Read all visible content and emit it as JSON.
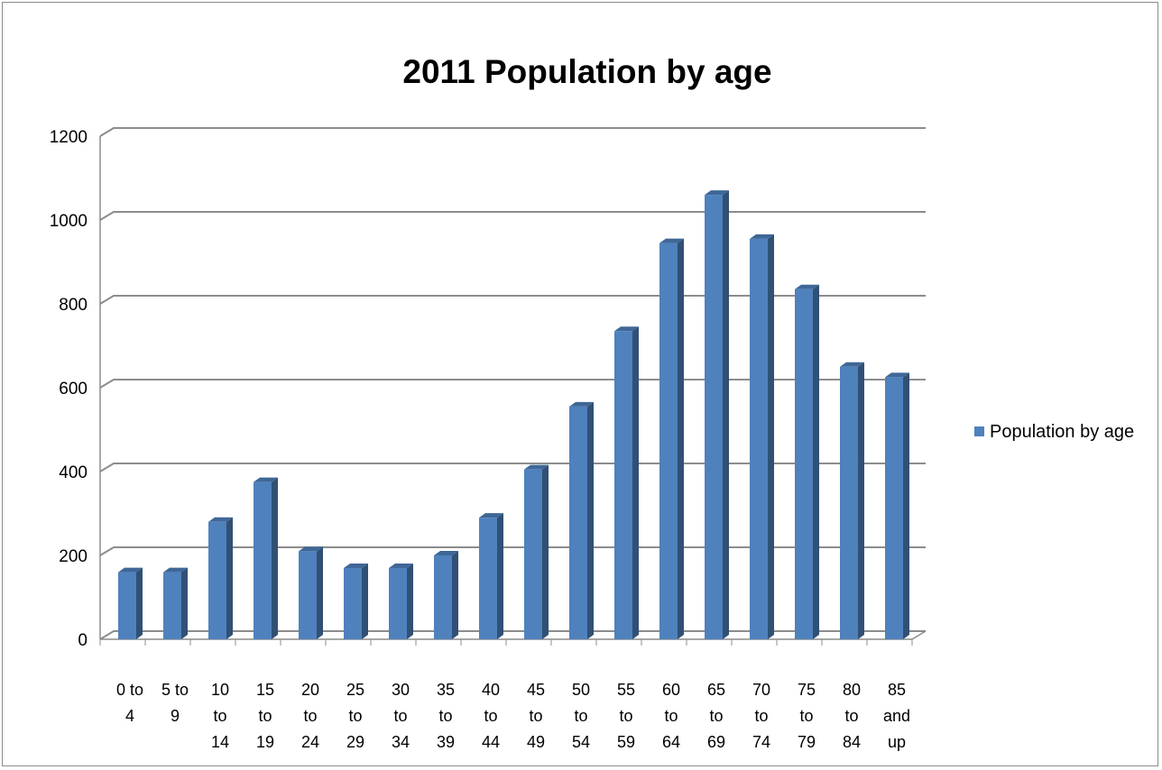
{
  "chart_data": {
    "type": "bar",
    "title": "2011 Population by age",
    "xlabel": "",
    "ylabel": "",
    "ylim": [
      0,
      1200
    ],
    "yticks": [
      0,
      200,
      400,
      600,
      800,
      1000,
      1200
    ],
    "grid": true,
    "legend_position": "right",
    "categories": [
      [
        "0 to",
        "4"
      ],
      [
        "5 to",
        "9"
      ],
      [
        "10",
        "to",
        "14"
      ],
      [
        "15",
        "to",
        "19"
      ],
      [
        "20",
        "to",
        "24"
      ],
      [
        "25",
        "to",
        "29"
      ],
      [
        "30",
        "to",
        "34"
      ],
      [
        "35",
        "to",
        "39"
      ],
      [
        "40",
        "to",
        "44"
      ],
      [
        "45",
        "to",
        "49"
      ],
      [
        "50",
        "to",
        "54"
      ],
      [
        "55",
        "to",
        "59"
      ],
      [
        "60",
        "to",
        "64"
      ],
      [
        "65",
        "to",
        "69"
      ],
      [
        "70",
        "to",
        "74"
      ],
      [
        "75",
        "to",
        "79"
      ],
      [
        "80",
        "to",
        "84"
      ],
      [
        "85",
        "and",
        "up"
      ]
    ],
    "series": [
      {
        "name": "Population by age",
        "color": "#4f81bd",
        "values": [
          160,
          160,
          280,
          375,
          210,
          170,
          170,
          200,
          290,
          405,
          555,
          735,
          945,
          1060,
          955,
          835,
          650,
          625
        ]
      }
    ]
  }
}
